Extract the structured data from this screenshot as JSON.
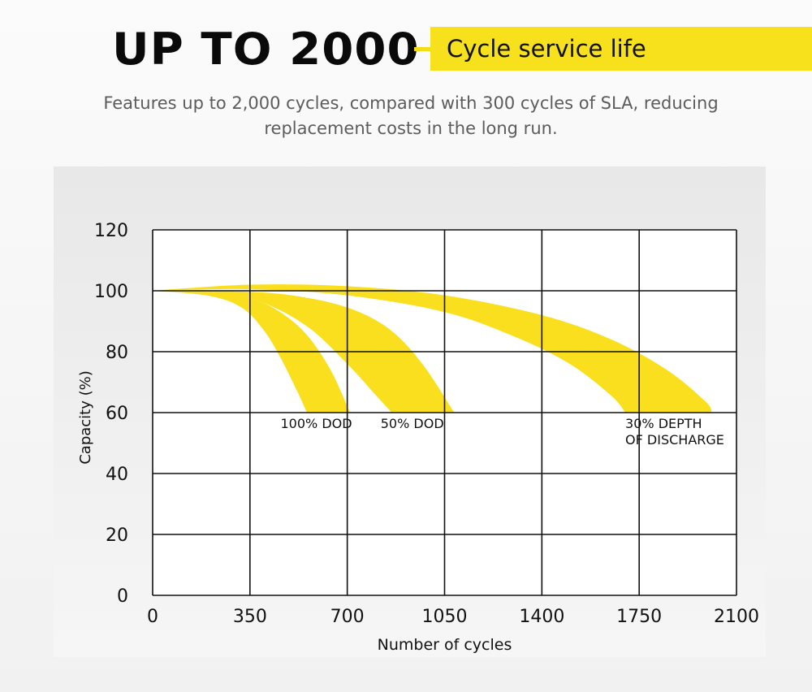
{
  "header": {
    "headline": "UP TO 2000",
    "tag": "Cycle service life",
    "subtitle_line1": "Features up to 2,000 cycles, compared with 300 cycles of SLA, reducing",
    "subtitle_line2": "replacement costs in the long run."
  },
  "colors": {
    "accent": "#f7e11c",
    "band": "#f9df1e",
    "grid": "#111111"
  },
  "chart_data": {
    "type": "area",
    "title": "",
    "xlabel": "Number of cycles",
    "ylabel": "Capacity (%)",
    "xlim": [
      0,
      2100
    ],
    "ylim": [
      0,
      120
    ],
    "xticks": [
      0,
      350,
      700,
      1050,
      1400,
      1750,
      2100
    ],
    "yticks": [
      0,
      20,
      40,
      60,
      80,
      100,
      120
    ],
    "grid": true,
    "series": [
      {
        "name": "100% DOD",
        "label_lines": [
          "100% DOD"
        ],
        "label_x": 460,
        "label_y": 55,
        "upper": [
          [
            0,
            100
          ],
          [
            200,
            99.6
          ],
          [
            350,
            97.5
          ],
          [
            450,
            93.5
          ],
          [
            550,
            86
          ],
          [
            640,
            74
          ],
          [
            710,
            60
          ]
        ],
        "lower": [
          [
            0,
            100
          ],
          [
            200,
            98.4
          ],
          [
            320,
            94.5
          ],
          [
            400,
            87
          ],
          [
            460,
            78
          ],
          [
            520,
            67
          ],
          [
            555,
            60
          ]
        ]
      },
      {
        "name": "50% DOD",
        "label_lines": [
          "50% DOD"
        ],
        "label_x": 820,
        "label_y": 55,
        "upper": [
          [
            0,
            100
          ],
          [
            300,
            99.8
          ],
          [
            500,
            98.5
          ],
          [
            700,
            94.5
          ],
          [
            850,
            87.5
          ],
          [
            970,
            76
          ],
          [
            1085,
            60
          ]
        ],
        "lower": [
          [
            0,
            100
          ],
          [
            250,
            99
          ],
          [
            400,
            96
          ],
          [
            560,
            88
          ],
          [
            700,
            76
          ],
          [
            800,
            66
          ],
          [
            860,
            60
          ]
        ]
      },
      {
        "name": "30% DEPTH OF DISCHARGE",
        "label_lines": [
          "30% DEPTH",
          "OF DISCHARGE"
        ],
        "label_x": 1700,
        "label_y": 55,
        "upper": [
          [
            0,
            100
          ],
          [
            350,
            102
          ],
          [
            700,
            101.5
          ],
          [
            1050,
            98.5
          ],
          [
            1400,
            92
          ],
          [
            1650,
            84
          ],
          [
            1850,
            74
          ],
          [
            1990,
            63.5
          ],
          [
            2010,
            60
          ]
        ],
        "lower": [
          [
            0,
            100
          ],
          [
            350,
            100.5
          ],
          [
            700,
            98.5
          ],
          [
            1050,
            93
          ],
          [
            1300,
            85
          ],
          [
            1500,
            76
          ],
          [
            1650,
            65.5
          ],
          [
            1700,
            60
          ]
        ]
      }
    ]
  }
}
